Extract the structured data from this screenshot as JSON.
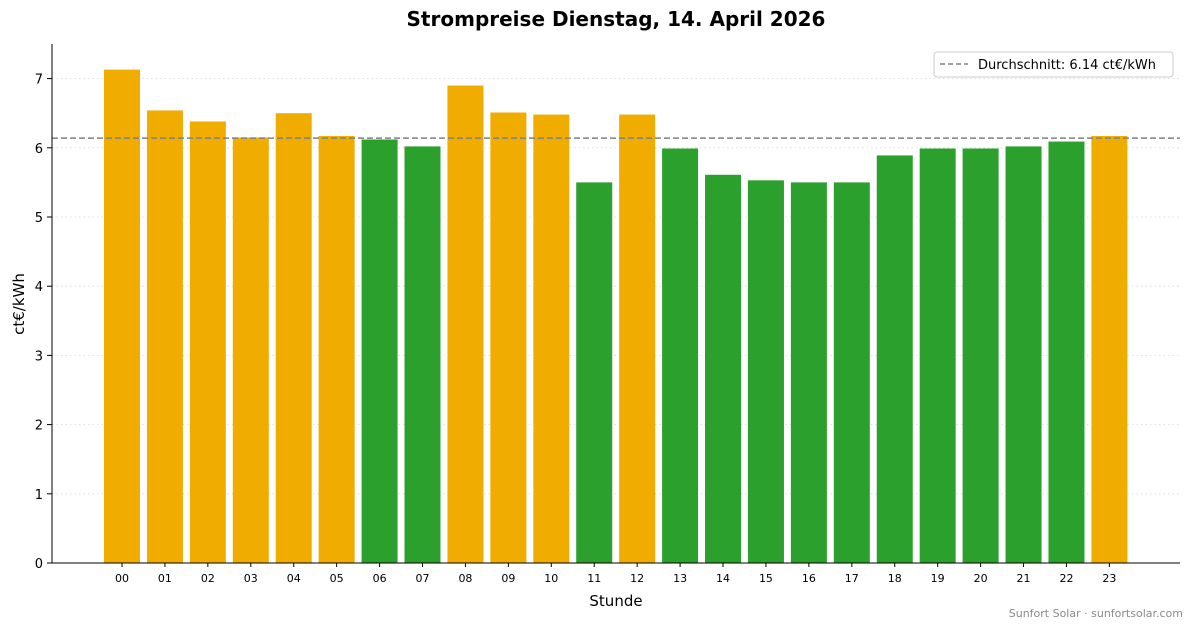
{
  "chart_data": {
    "type": "bar",
    "title": "Strompreise Dienstag, 14. April 2026",
    "xlabel": "Stunde",
    "ylabel": "ct€/kWh",
    "ylim": [
      0,
      7.5
    ],
    "yticks": [
      "0",
      "1",
      "2",
      "3",
      "4",
      "5",
      "6",
      "7"
    ],
    "categories": [
      "00",
      "01",
      "02",
      "03",
      "04",
      "05",
      "06",
      "07",
      "08",
      "09",
      "10",
      "11",
      "12",
      "13",
      "14",
      "15",
      "16",
      "17",
      "18",
      "19",
      "20",
      "21",
      "22",
      "23"
    ],
    "values": [
      7.13,
      6.54,
      6.38,
      6.15,
      6.5,
      6.17,
      6.12,
      6.02,
      6.9,
      6.51,
      6.48,
      5.5,
      6.48,
      5.99,
      5.61,
      5.53,
      5.5,
      5.5,
      5.89,
      5.99,
      5.99,
      6.02,
      6.09,
      6.17
    ],
    "average": 6.14,
    "legend": {
      "label": "Durchschnitt: 6.14 ct€/kWh",
      "placement": "top-right"
    },
    "colors": {
      "above_average": "#f0ad00",
      "below_average": "#2ca02c",
      "average_line": "#808080"
    },
    "grid": "horizontal-dotted"
  },
  "footer": "Sunfort Solar · sunfortsolar.com"
}
